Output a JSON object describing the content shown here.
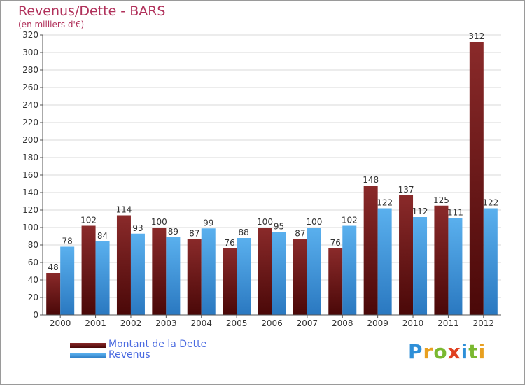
{
  "colors": {
    "debt": "#7a1a1a",
    "revenue": "#2e8fd8",
    "title": "#b0305a"
  },
  "chart_data": {
    "type": "bar",
    "title": "Revenus/Dette - BARS",
    "subtitle": "(en milliers d'€)",
    "xlabel": "",
    "ylabel": "",
    "ylim": [
      0,
      320
    ],
    "yticks": [
      0,
      20,
      40,
      60,
      80,
      100,
      120,
      140,
      160,
      180,
      200,
      220,
      240,
      260,
      280,
      300,
      320
    ],
    "categories": [
      "2000",
      "2001",
      "2002",
      "2003",
      "2004",
      "2005",
      "2006",
      "2007",
      "2008",
      "2009",
      "2010",
      "2011",
      "2012"
    ],
    "series": [
      {
        "name": "Montant de la Dette",
        "values": [
          48,
          102,
          114,
          100,
          87,
          76,
          100,
          87,
          76,
          148,
          137,
          125,
          312
        ]
      },
      {
        "name": "Revenus",
        "values": [
          78,
          84,
          93,
          89,
          99,
          88,
          95,
          100,
          102,
          122,
          112,
          111,
          122
        ]
      }
    ],
    "legend": [
      "Montant de la Dette",
      "Revenus"
    ]
  },
  "logo": {
    "letters": [
      "P",
      "r",
      "o",
      "x",
      "i",
      "t",
      "i"
    ],
    "colors": [
      "#2e8fd8",
      "#e8a020",
      "#7ab830",
      "#e04020",
      "#2e8fd8",
      "#7ab830",
      "#e8a020"
    ]
  }
}
